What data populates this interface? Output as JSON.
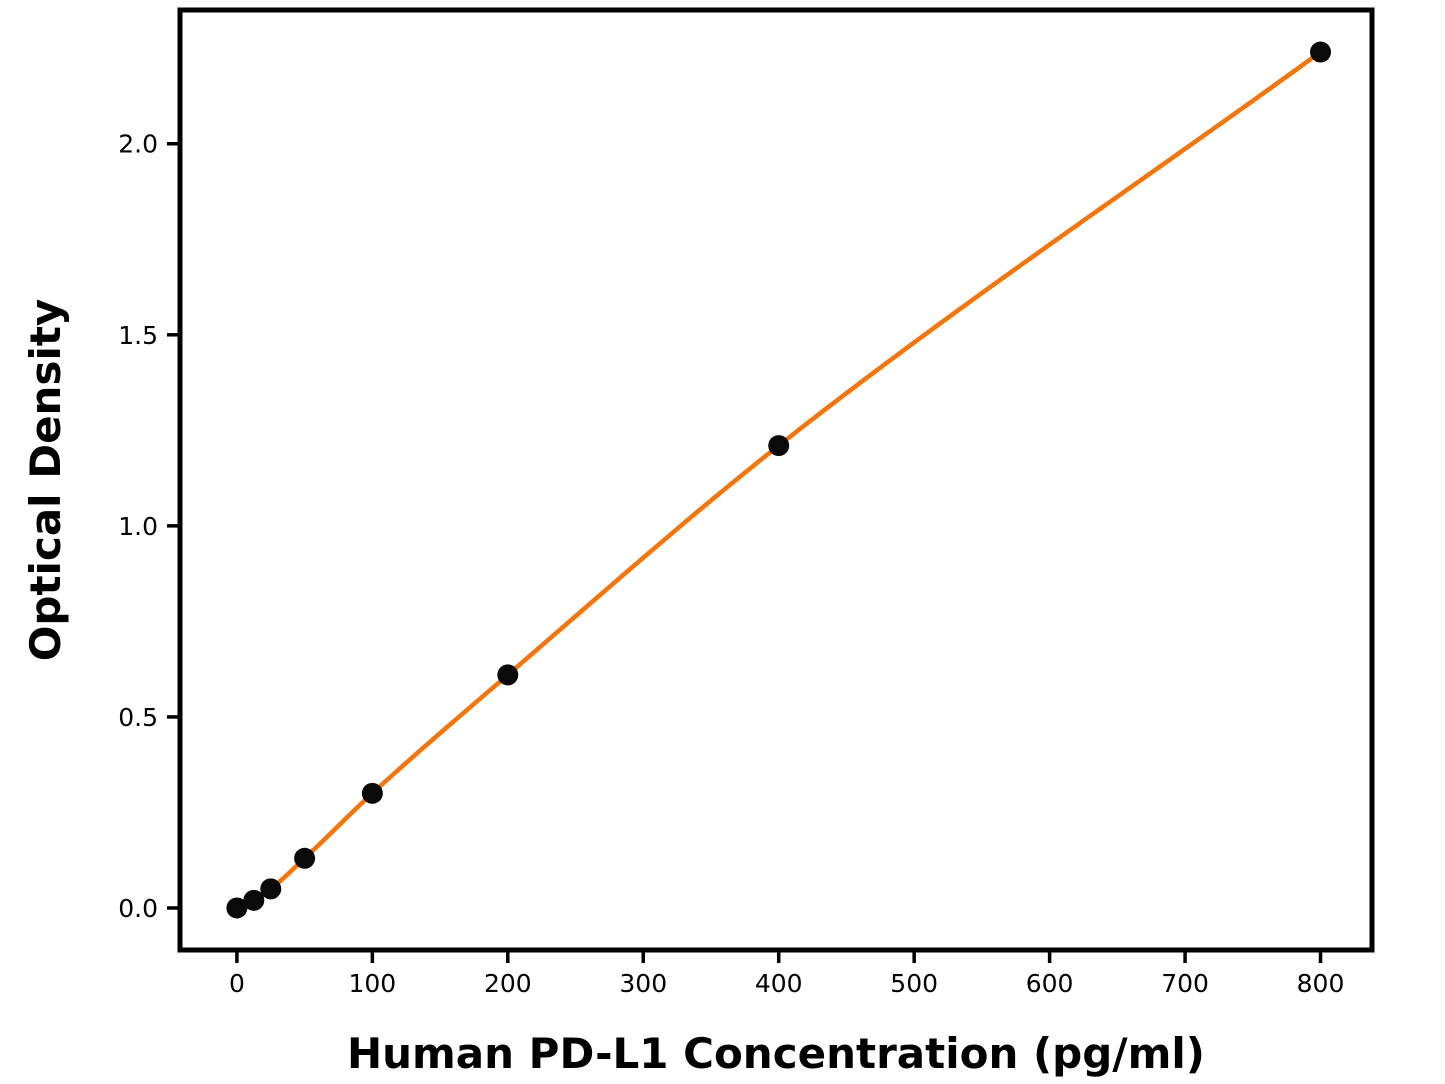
{
  "chart_data": {
    "type": "line",
    "x": [
      0,
      12.5,
      25,
      50,
      100,
      200,
      400,
      800
    ],
    "y": [
      0.0,
      0.02,
      0.05,
      0.13,
      0.3,
      0.61,
      1.21,
      2.24
    ],
    "title": "",
    "xlabel": "Human PD-L1 Concentration (pg/ml)",
    "ylabel": "Optical Density",
    "xlim": [
      -42,
      838
    ],
    "ylim": [
      -0.11,
      2.35
    ],
    "x_ticks": [
      0,
      100,
      200,
      300,
      400,
      500,
      600,
      700,
      800
    ],
    "x_tick_labels": [
      "0",
      "100",
      "200",
      "300",
      "400",
      "500",
      "600",
      "700",
      "800"
    ],
    "y_ticks": [
      0,
      0.5,
      1,
      1.5,
      2
    ],
    "y_tick_labels": [
      "0.0",
      "0.5",
      "1.0",
      "1.5",
      "2.0"
    ],
    "grid": false,
    "legend": null,
    "marker": "circle",
    "line_color": "#f87408",
    "marker_color": "#0a0a0a",
    "axis_color": "#000000",
    "background_color": "#ffffff"
  }
}
